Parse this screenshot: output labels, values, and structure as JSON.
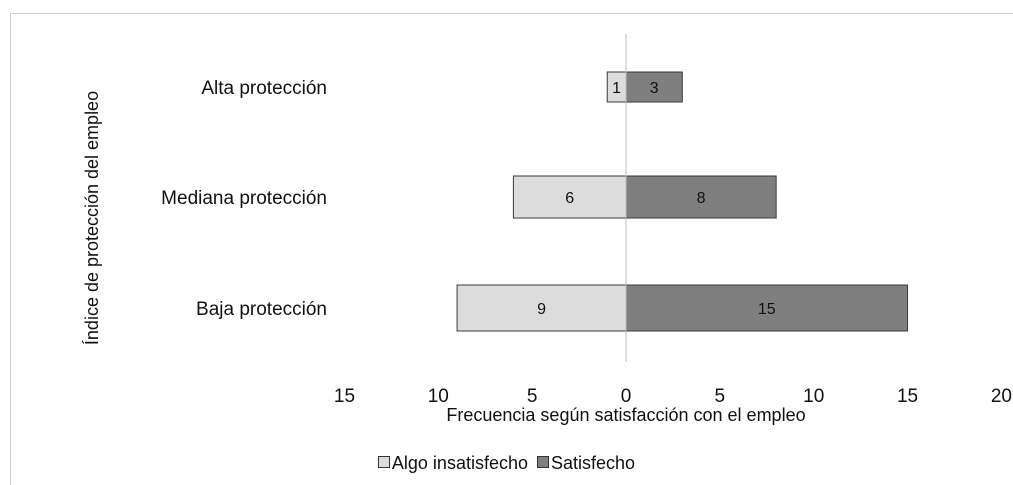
{
  "chart_data": {
    "type": "bar",
    "orientation": "horizontal",
    "diverging": true,
    "categories": [
      "Alta protección",
      "Mediana protección",
      "Baja protección"
    ],
    "series": [
      {
        "name": "Algo insatisfecho",
        "values": [
          1,
          6,
          9
        ],
        "color": "#dcdcdc",
        "direction": "left"
      },
      {
        "name": "Satisfecho",
        "values": [
          3,
          8,
          15
        ],
        "color": "#7f7f7f",
        "direction": "right"
      }
    ],
    "xlabel": "Frecuencia según satisfacción con el empleo",
    "ylabel": "Índice de protección del empleo",
    "xlim": [
      -15,
      20
    ],
    "x_ticks": [
      -15,
      -10,
      -5,
      0,
      5,
      10,
      15,
      20
    ],
    "x_tick_labels": [
      "15",
      "10",
      "5",
      "0",
      "5",
      "10",
      "15",
      "20"
    ],
    "grid": false,
    "legend_position": "bottom"
  }
}
